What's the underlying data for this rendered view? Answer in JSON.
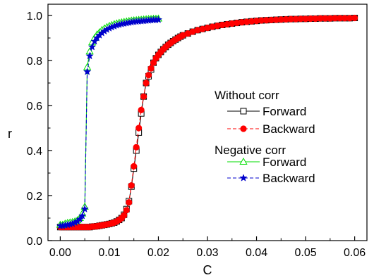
{
  "chart_data": {
    "type": "line",
    "xlabel": "C",
    "ylabel": "r",
    "xlim": [
      -0.0025,
      0.0625
    ],
    "ylim": [
      0.0,
      1.05
    ],
    "xticks": [
      0.0,
      0.01,
      0.02,
      0.03,
      0.04,
      0.05,
      0.06
    ],
    "xtick_labels": [
      "0.00",
      "0.01",
      "0.02",
      "0.03",
      "0.04",
      "0.05",
      "0.06"
    ],
    "yticks": [
      0.0,
      0.2,
      0.4,
      0.6,
      0.8,
      1.0
    ],
    "ytick_labels": [
      "0.0",
      "0.2",
      "0.4",
      "0.6",
      "0.8",
      "1.0"
    ],
    "legend_position": "right",
    "legend_groups": [
      {
        "title": "Without corr",
        "series": [
          "Forward",
          "Backward"
        ]
      },
      {
        "title": "Negative corr",
        "series": [
          "Forward",
          "Backward"
        ]
      }
    ],
    "series": [
      {
        "name": "Forward",
        "group": "Without corr",
        "color": "#000000",
        "marker": "square-open",
        "line": "solid",
        "x": [
          0.0,
          0.0005,
          0.001,
          0.0015,
          0.002,
          0.0025,
          0.003,
          0.0035,
          0.004,
          0.0045,
          0.005,
          0.0055,
          0.006,
          0.0065,
          0.007,
          0.0075,
          0.008,
          0.0085,
          0.009,
          0.0095,
          0.01,
          0.0105,
          0.011,
          0.0115,
          0.012,
          0.0125,
          0.013,
          0.0135,
          0.014,
          0.0145,
          0.015,
          0.0155,
          0.016,
          0.0165,
          0.017,
          0.0175,
          0.018,
          0.0185,
          0.019,
          0.0195,
          0.02,
          0.0205,
          0.021,
          0.0215,
          0.022,
          0.0225,
          0.023,
          0.0235,
          0.024,
          0.0245,
          0.025,
          0.026,
          0.027,
          0.028,
          0.029,
          0.03,
          0.031,
          0.032,
          0.033,
          0.034,
          0.035,
          0.036,
          0.037,
          0.038,
          0.039,
          0.04,
          0.041,
          0.042,
          0.043,
          0.044,
          0.045,
          0.046,
          0.047,
          0.048,
          0.049,
          0.05,
          0.051,
          0.052,
          0.053,
          0.054,
          0.055,
          0.056,
          0.057,
          0.058,
          0.059,
          0.06
        ],
        "y": [
          0.06,
          0.06,
          0.06,
          0.06,
          0.06,
          0.06,
          0.06,
          0.06,
          0.06,
          0.06,
          0.06,
          0.06,
          0.06,
          0.062,
          0.063,
          0.064,
          0.066,
          0.068,
          0.07,
          0.072,
          0.074,
          0.077,
          0.08,
          0.085,
          0.092,
          0.1,
          0.115,
          0.14,
          0.175,
          0.24,
          0.32,
          0.4,
          0.48,
          0.565,
          0.64,
          0.7,
          0.73,
          0.76,
          0.79,
          0.81,
          0.825,
          0.838,
          0.85,
          0.86,
          0.87,
          0.878,
          0.886,
          0.893,
          0.9,
          0.906,
          0.912,
          0.92,
          0.928,
          0.935,
          0.94,
          0.945,
          0.95,
          0.954,
          0.958,
          0.961,
          0.964,
          0.967,
          0.97,
          0.972,
          0.974,
          0.976,
          0.978,
          0.979,
          0.98,
          0.981,
          0.982,
          0.983,
          0.984,
          0.984,
          0.985,
          0.985,
          0.986,
          0.986,
          0.987,
          0.987,
          0.987,
          0.988,
          0.988,
          0.988,
          0.988,
          0.989
        ]
      },
      {
        "name": "Backward",
        "group": "Without corr",
        "color": "#ff0000",
        "marker": "circle-filled",
        "line": "dashed",
        "x": [
          0.0,
          0.0005,
          0.001,
          0.0015,
          0.002,
          0.0025,
          0.003,
          0.0035,
          0.004,
          0.0045,
          0.005,
          0.0055,
          0.006,
          0.0065,
          0.007,
          0.0075,
          0.008,
          0.0085,
          0.009,
          0.0095,
          0.01,
          0.0105,
          0.011,
          0.0115,
          0.012,
          0.0125,
          0.013,
          0.0135,
          0.014,
          0.0145,
          0.015,
          0.0155,
          0.016,
          0.0165,
          0.017,
          0.0175,
          0.018,
          0.0185,
          0.019,
          0.0195,
          0.02,
          0.0205,
          0.021,
          0.0215,
          0.022,
          0.0225,
          0.023,
          0.0235,
          0.024,
          0.0245,
          0.025,
          0.026,
          0.027,
          0.028,
          0.029,
          0.03,
          0.031,
          0.032,
          0.033,
          0.034,
          0.035,
          0.036,
          0.037,
          0.038,
          0.039,
          0.04,
          0.041,
          0.042,
          0.043,
          0.044,
          0.045,
          0.046,
          0.047,
          0.048,
          0.049,
          0.05,
          0.051,
          0.052,
          0.053,
          0.054,
          0.055,
          0.056,
          0.057,
          0.058,
          0.059,
          0.06
        ],
        "y": [
          0.06,
          0.06,
          0.06,
          0.06,
          0.06,
          0.06,
          0.06,
          0.06,
          0.06,
          0.06,
          0.06,
          0.06,
          0.06,
          0.062,
          0.063,
          0.064,
          0.066,
          0.068,
          0.07,
          0.072,
          0.074,
          0.077,
          0.08,
          0.085,
          0.092,
          0.1,
          0.112,
          0.135,
          0.17,
          0.245,
          0.33,
          0.415,
          0.5,
          0.58,
          0.64,
          0.7,
          0.735,
          0.765,
          0.79,
          0.81,
          0.825,
          0.838,
          0.85,
          0.86,
          0.87,
          0.878,
          0.886,
          0.893,
          0.9,
          0.906,
          0.912,
          0.92,
          0.928,
          0.935,
          0.94,
          0.945,
          0.95,
          0.954,
          0.958,
          0.961,
          0.964,
          0.967,
          0.97,
          0.972,
          0.974,
          0.976,
          0.978,
          0.979,
          0.98,
          0.981,
          0.982,
          0.983,
          0.984,
          0.984,
          0.985,
          0.985,
          0.986,
          0.986,
          0.987,
          0.987,
          0.987,
          0.988,
          0.988,
          0.988,
          0.988,
          0.989
        ]
      },
      {
        "name": "Forward",
        "group": "Negative corr",
        "color": "#00dd00",
        "marker": "triangle-open",
        "line": "solid",
        "x": [
          0.0,
          0.0005,
          0.001,
          0.0015,
          0.002,
          0.0025,
          0.003,
          0.0035,
          0.004,
          0.0045,
          0.005,
          0.0055,
          0.006,
          0.0065,
          0.007,
          0.0075,
          0.008,
          0.0085,
          0.009,
          0.0095,
          0.01,
          0.0105,
          0.011,
          0.0115,
          0.012,
          0.0125,
          0.013,
          0.0135,
          0.014,
          0.0145,
          0.015,
          0.0155,
          0.016,
          0.0165,
          0.017,
          0.0175,
          0.018,
          0.0185,
          0.019,
          0.0195,
          0.02
        ],
        "y": [
          0.07,
          0.07,
          0.075,
          0.078,
          0.08,
          0.082,
          0.085,
          0.09,
          0.1,
          0.12,
          0.15,
          0.77,
          0.84,
          0.88,
          0.9,
          0.915,
          0.925,
          0.935,
          0.942,
          0.948,
          0.953,
          0.957,
          0.961,
          0.964,
          0.967,
          0.969,
          0.971,
          0.973,
          0.975,
          0.977,
          0.978,
          0.979,
          0.98,
          0.981,
          0.982,
          0.983,
          0.984,
          0.984,
          0.985,
          0.985,
          0.986
        ]
      },
      {
        "name": "Backward",
        "group": "Negative corr",
        "color": "#0000cc",
        "marker": "star-filled",
        "line": "dashed",
        "x": [
          0.0,
          0.0005,
          0.001,
          0.0015,
          0.002,
          0.0025,
          0.003,
          0.0035,
          0.004,
          0.0045,
          0.005,
          0.0055,
          0.006,
          0.0065,
          0.007,
          0.0075,
          0.008,
          0.0085,
          0.009,
          0.0095,
          0.01,
          0.0105,
          0.011,
          0.0115,
          0.012,
          0.0125,
          0.013,
          0.0135,
          0.014,
          0.0145,
          0.015,
          0.0155,
          0.016,
          0.0165,
          0.017,
          0.0175,
          0.018,
          0.0185,
          0.019,
          0.0195,
          0.02
        ],
        "y": [
          0.065,
          0.066,
          0.068,
          0.07,
          0.072,
          0.075,
          0.08,
          0.085,
          0.095,
          0.11,
          0.14,
          0.75,
          0.82,
          0.86,
          0.885,
          0.9,
          0.912,
          0.922,
          0.93,
          0.937,
          0.943,
          0.948,
          0.952,
          0.956,
          0.959,
          0.962,
          0.964,
          0.966,
          0.968,
          0.97,
          0.972,
          0.973,
          0.974,
          0.975,
          0.976,
          0.977,
          0.978,
          0.979,
          0.98,
          0.98,
          0.981
        ]
      }
    ]
  }
}
